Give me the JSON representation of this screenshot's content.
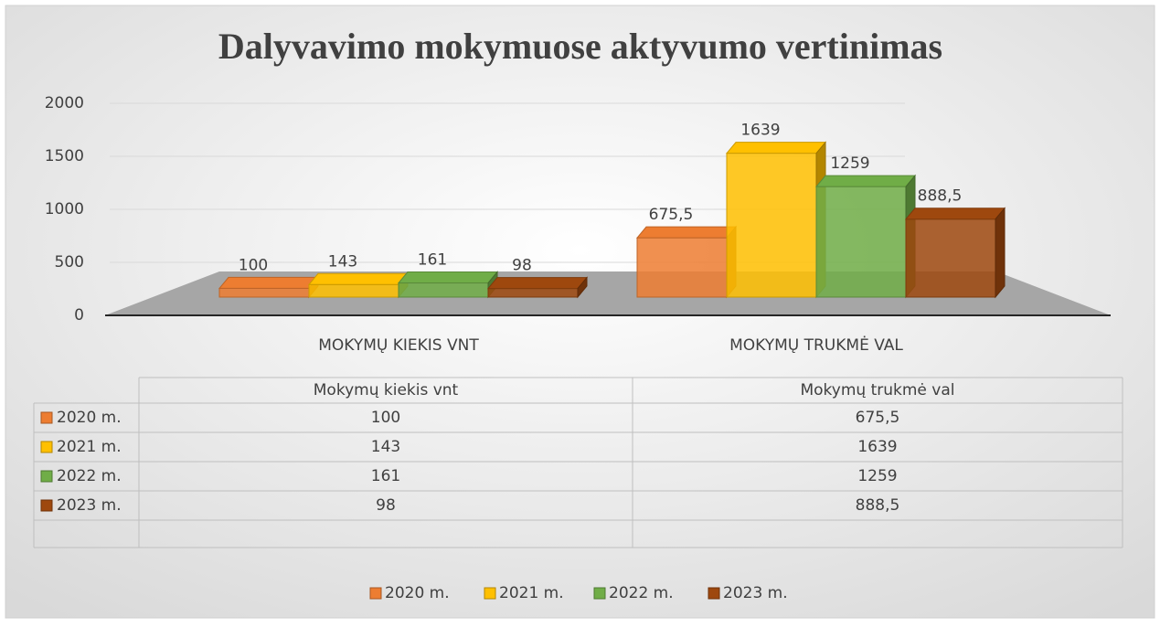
{
  "chart_data": {
    "type": "bar",
    "title": "Dalyvavimo mokymuose aktyvumo vertinimas",
    "categories": [
      "MOKYMŲ KIEKIS VNT",
      "MOKYMŲ TRUKMĖ VAL"
    ],
    "table_columns": [
      "Mokymų kiekis vnt",
      "Mokymų trukmė val"
    ],
    "series": [
      {
        "name": "2020 m.",
        "color": "#ed7d31",
        "values": [
          100,
          675.5
        ],
        "value_labels": [
          "100",
          "675,5"
        ]
      },
      {
        "name": "2021 m.",
        "color": "#ffc000",
        "values": [
          143,
          1639
        ]
      },
      {
        "name": "2022 m.",
        "color": "#70ad47",
        "values": [
          161,
          1259
        ]
      },
      {
        "name": "2023 m.",
        "color": "#9e480e",
        "values": [
          98,
          888.5
        ],
        "value_labels": [
          "98",
          "888,5"
        ]
      }
    ],
    "ylim": [
      0,
      2000
    ],
    "yticks": [
      0,
      500,
      1000,
      1500,
      2000
    ],
    "grid": true,
    "legend": "bottom"
  }
}
